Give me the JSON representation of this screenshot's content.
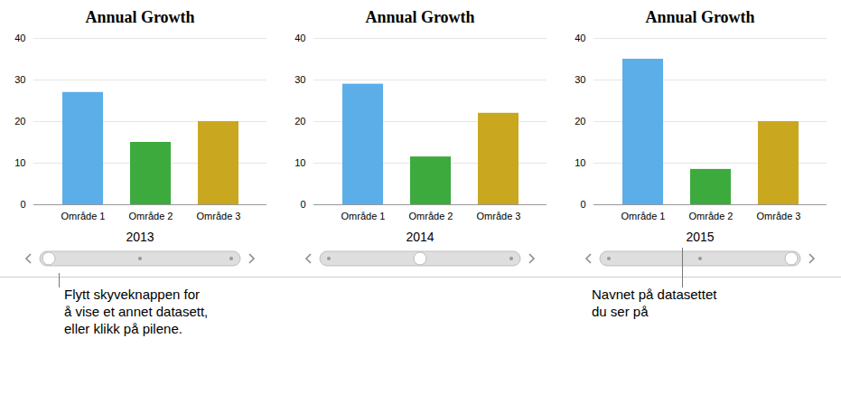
{
  "chart_data": [
    {
      "type": "bar",
      "title": "Annual Growth",
      "x_label": "2013",
      "categories": [
        "Område 1",
        "Område 2",
        "Område 3"
      ],
      "values": [
        27,
        15,
        20
      ],
      "colors": [
        "#5BAEE8",
        "#3DAA3D",
        "#C9A820"
      ],
      "ylim": [
        0,
        40
      ],
      "yticks": [
        0,
        10,
        20,
        30,
        40
      ],
      "grid": true,
      "annotations": [
        "Flytt skyveknappen for\nå vise et annet datasett,\neller klikk på pilene."
      ]
    },
    {
      "type": "bar",
      "title": "Annual Growth",
      "x_label": "2014",
      "categories": [
        "Område 1",
        "Område 2",
        "Område 3"
      ],
      "values": [
        29,
        11.5,
        22
      ],
      "colors": [
        "#5BAEE8",
        "#3DAA3D",
        "#C9A820"
      ],
      "ylim": [
        0,
        40
      ],
      "yticks": [
        0,
        10,
        20,
        30,
        40
      ],
      "grid": true
    },
    {
      "type": "bar",
      "title": "Annual Growth",
      "x_label": "2015",
      "categories": [
        "Område 1",
        "Område 2",
        "Område 3"
      ],
      "values": [
        35,
        8.5,
        20
      ],
      "colors": [
        "#5BAEE8",
        "#3DAA3D",
        "#C9A820"
      ],
      "ylim": [
        0,
        40
      ],
      "yticks": [
        0,
        10,
        20,
        30,
        40
      ],
      "grid": true,
      "annotations": [
        "Navnet på datasettet\ndu ser på"
      ]
    }
  ]
}
